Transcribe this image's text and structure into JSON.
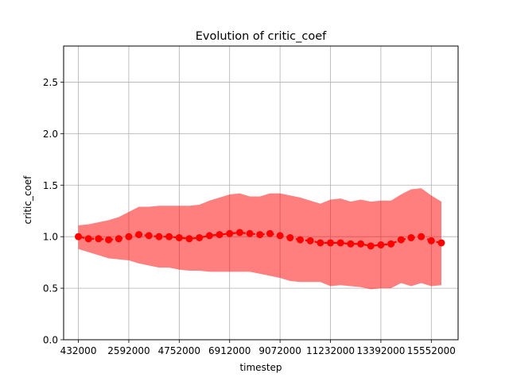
{
  "chart_data": {
    "type": "line",
    "title": "Evolution of critic_coef",
    "xlabel": "timestep",
    "ylabel": "critic_coef",
    "xlim": [
      -200000,
      16700000
    ],
    "ylim": [
      0.0,
      2.85
    ],
    "grid": true,
    "xticks": [
      432000,
      2592000,
      4752000,
      6912000,
      9072000,
      11232000,
      13392000,
      15552000
    ],
    "xtick_labels": [
      "432000",
      "2592000",
      "4752000",
      "6912000",
      "9072000",
      "11232000",
      "13392000",
      "15552000"
    ],
    "yticks": [
      0.0,
      0.5,
      1.0,
      1.5,
      2.0,
      2.5
    ],
    "ytick_labels": [
      "0.0",
      "0.5",
      "1.0",
      "1.5",
      "2.0",
      "2.5"
    ],
    "colors": {
      "line": "#ff0000",
      "band": "#ff0000",
      "grid": "#b0b0b0"
    },
    "series": [
      {
        "x": [
          432000,
          864000,
          1296000,
          1728000,
          2160000,
          2592000,
          3024000,
          3456000,
          3888000,
          4320000,
          4752000,
          5184000,
          5616000,
          6048000,
          6480000,
          6912000,
          7344000,
          7776000,
          8208000,
          8640000,
          9072000,
          9504000,
          9936000,
          10368000,
          10800000,
          11232000,
          11664000,
          12096000,
          12528000,
          12960000,
          13392000,
          13824000,
          14256000,
          14688000,
          15120000,
          15552000,
          15984000
        ],
        "y": [
          1.0,
          0.98,
          0.98,
          0.97,
          0.98,
          1.0,
          1.02,
          1.01,
          1.0,
          1.0,
          0.99,
          0.98,
          0.99,
          1.01,
          1.02,
          1.03,
          1.04,
          1.03,
          1.02,
          1.03,
          1.01,
          0.99,
          0.97,
          0.96,
          0.94,
          0.94,
          0.94,
          0.93,
          0.93,
          0.91,
          0.92,
          0.93,
          0.97,
          0.99,
          1.0,
          0.96,
          0.94
        ],
        "upper": [
          1.11,
          1.12,
          1.14,
          1.16,
          1.19,
          1.24,
          1.29,
          1.29,
          1.3,
          1.3,
          1.3,
          1.3,
          1.31,
          1.35,
          1.38,
          1.41,
          1.42,
          1.39,
          1.39,
          1.42,
          1.42,
          1.4,
          1.38,
          1.35,
          1.32,
          1.36,
          1.37,
          1.34,
          1.36,
          1.34,
          1.35,
          1.35,
          1.41,
          1.46,
          1.47,
          1.4,
          1.34
        ],
        "lower": [
          0.88,
          0.85,
          0.82,
          0.79,
          0.78,
          0.77,
          0.74,
          0.72,
          0.7,
          0.7,
          0.68,
          0.67,
          0.67,
          0.66,
          0.66,
          0.66,
          0.66,
          0.66,
          0.64,
          0.62,
          0.6,
          0.57,
          0.56,
          0.56,
          0.56,
          0.52,
          0.53,
          0.52,
          0.51,
          0.49,
          0.5,
          0.5,
          0.55,
          0.52,
          0.55,
          0.52,
          0.53
        ]
      }
    ]
  }
}
